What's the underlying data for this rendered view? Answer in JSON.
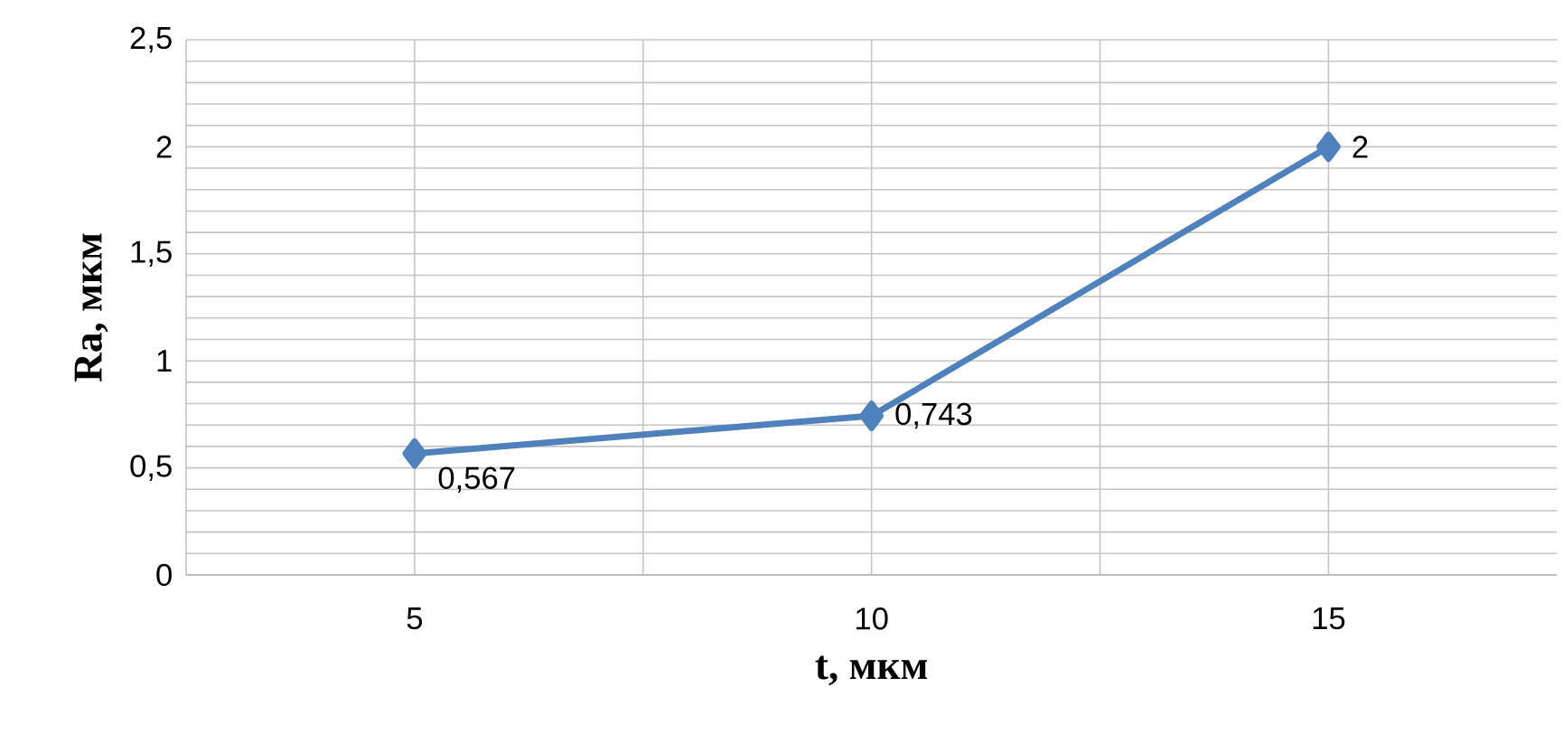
{
  "chart_data": {
    "type": "line",
    "xlabel": "t, мкм",
    "ylabel": "Ra, мкм",
    "x": [
      5,
      10,
      15
    ],
    "series": [
      {
        "color": "#4f81bd",
        "values": [
          0.567,
          0.743,
          2
        ],
        "value_labels": [
          "0,567",
          "0,743",
          "2"
        ]
      }
    ],
    "marker": "diamond",
    "line_style": "solid",
    "grid": true,
    "xlim": [
      2.5,
      17.5
    ],
    "xticks": [
      5,
      {
        "value": 7.5,
        "label": null
      },
      10,
      {
        "value": 12.5,
        "label": null
      },
      15
    ],
    "ylim": [
      0,
      2.5
    ],
    "yticks": [
      {
        "value": 0,
        "label": "0"
      },
      {
        "value": 0.1,
        "label": null
      },
      {
        "value": 0.2,
        "label": null
      },
      {
        "value": 0.3,
        "label": null
      },
      {
        "value": 0.4,
        "label": null
      },
      {
        "value": 0.5,
        "label": "0,5"
      },
      {
        "value": 0.6,
        "label": null
      },
      {
        "value": 0.7,
        "label": null
      },
      {
        "value": 0.8,
        "label": null
      },
      {
        "value": 0.9,
        "label": null
      },
      {
        "value": 1,
        "label": "1"
      },
      {
        "value": 1.1,
        "label": null
      },
      {
        "value": 1.2,
        "label": null
      },
      {
        "value": 1.3,
        "label": null
      },
      {
        "value": 1.4,
        "label": null
      },
      {
        "value": 1.5,
        "label": "1,5"
      },
      {
        "value": 1.6,
        "label": null
      },
      {
        "value": 1.7,
        "label": null
      },
      {
        "value": 1.8,
        "label": null
      },
      {
        "value": 1.9,
        "label": null
      },
      {
        "value": 2,
        "label": "2"
      },
      {
        "value": 2.1,
        "label": null
      },
      {
        "value": 2.2,
        "label": null
      },
      {
        "value": 2.3,
        "label": null
      },
      {
        "value": 2.4,
        "label": null
      },
      {
        "value": 2.5,
        "label": "2,5"
      }
    ]
  }
}
